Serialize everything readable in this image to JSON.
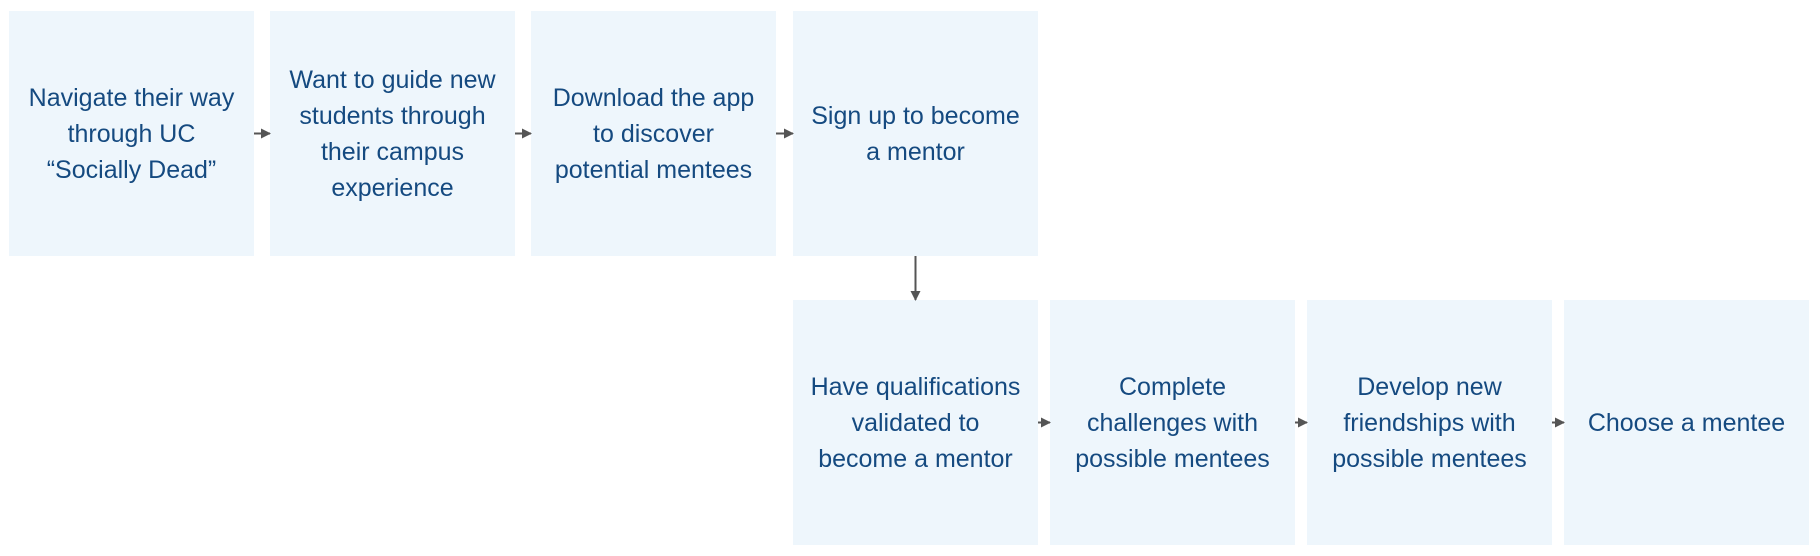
{
  "diagram": {
    "colors": {
      "box_fill": "#eef6fc",
      "text": "#154a80",
      "arrow": "#555555"
    },
    "steps": [
      {
        "id": "navigate",
        "label": "Navigate their way through UC “Socially Dead”"
      },
      {
        "id": "guide",
        "label": "Want to guide new students through their campus experience"
      },
      {
        "id": "download",
        "label": "Download the app to discover potential mentees"
      },
      {
        "id": "signup",
        "label": "Sign up to become a mentor"
      },
      {
        "id": "qualify",
        "label": "Have qualifications validated to become a mentor"
      },
      {
        "id": "challenges",
        "label": "Complete challenges with possible mentees"
      },
      {
        "id": "friendships",
        "label": "Develop new friendships with possible mentees"
      },
      {
        "id": "choose",
        "label": "Choose a mentee"
      }
    ],
    "connections": [
      {
        "from": "navigate",
        "to": "guide"
      },
      {
        "from": "guide",
        "to": "download"
      },
      {
        "from": "download",
        "to": "signup"
      },
      {
        "from": "signup",
        "to": "qualify"
      },
      {
        "from": "qualify",
        "to": "challenges"
      },
      {
        "from": "challenges",
        "to": "friendships"
      },
      {
        "from": "friendships",
        "to": "choose"
      }
    ]
  }
}
